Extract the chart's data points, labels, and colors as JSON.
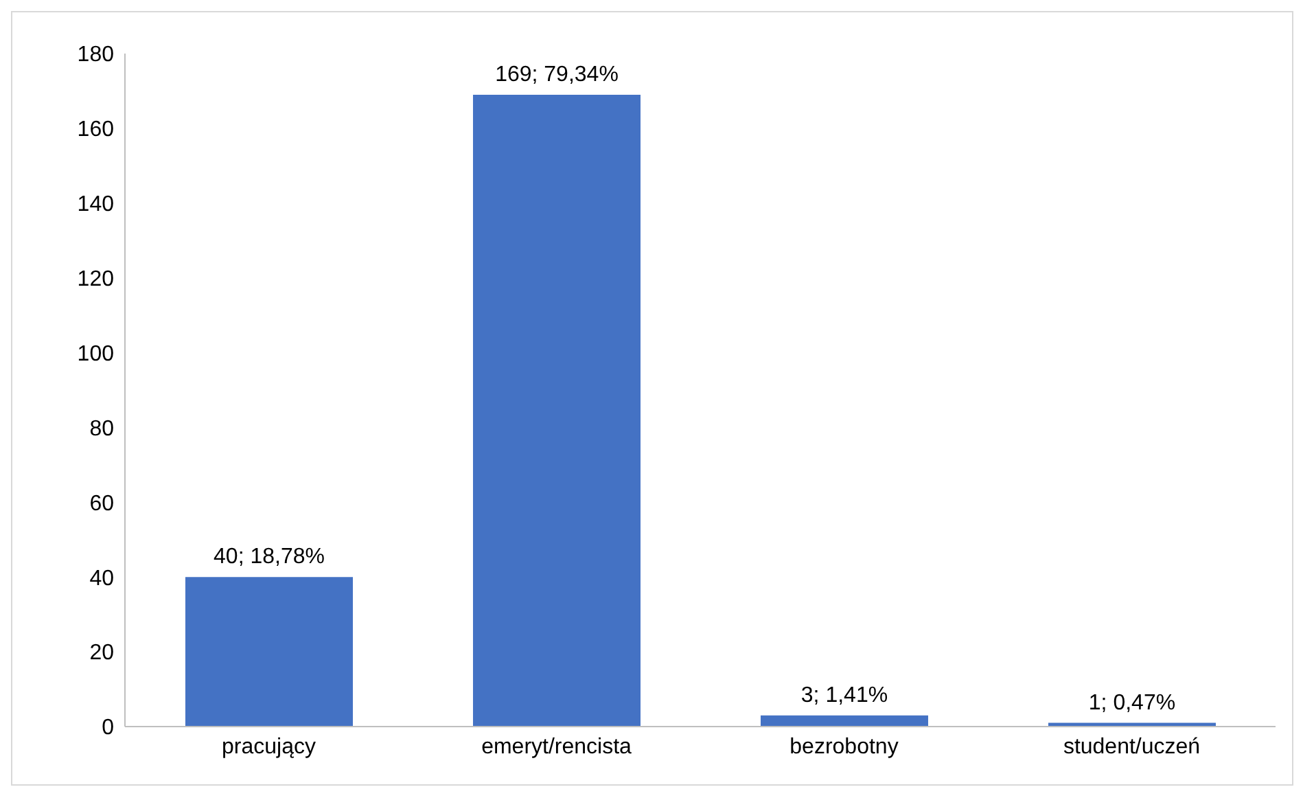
{
  "chart_data": {
    "type": "bar",
    "categories": [
      "pracujący",
      "emeryt/rencista",
      "bezrobotny",
      "student/uczeń"
    ],
    "values": [
      40,
      169,
      3,
      1
    ],
    "color": "#4472c4",
    "value_labels": [
      "40; 18,78%",
      "169; 79,34%",
      "3; 1,41%",
      "1; 0,47%"
    ],
    "ylim": [
      0,
      180
    ],
    "yticks": [
      0,
      20,
      40,
      60,
      80,
      100,
      120,
      140,
      160,
      180
    ],
    "grid": false,
    "legend": false
  }
}
